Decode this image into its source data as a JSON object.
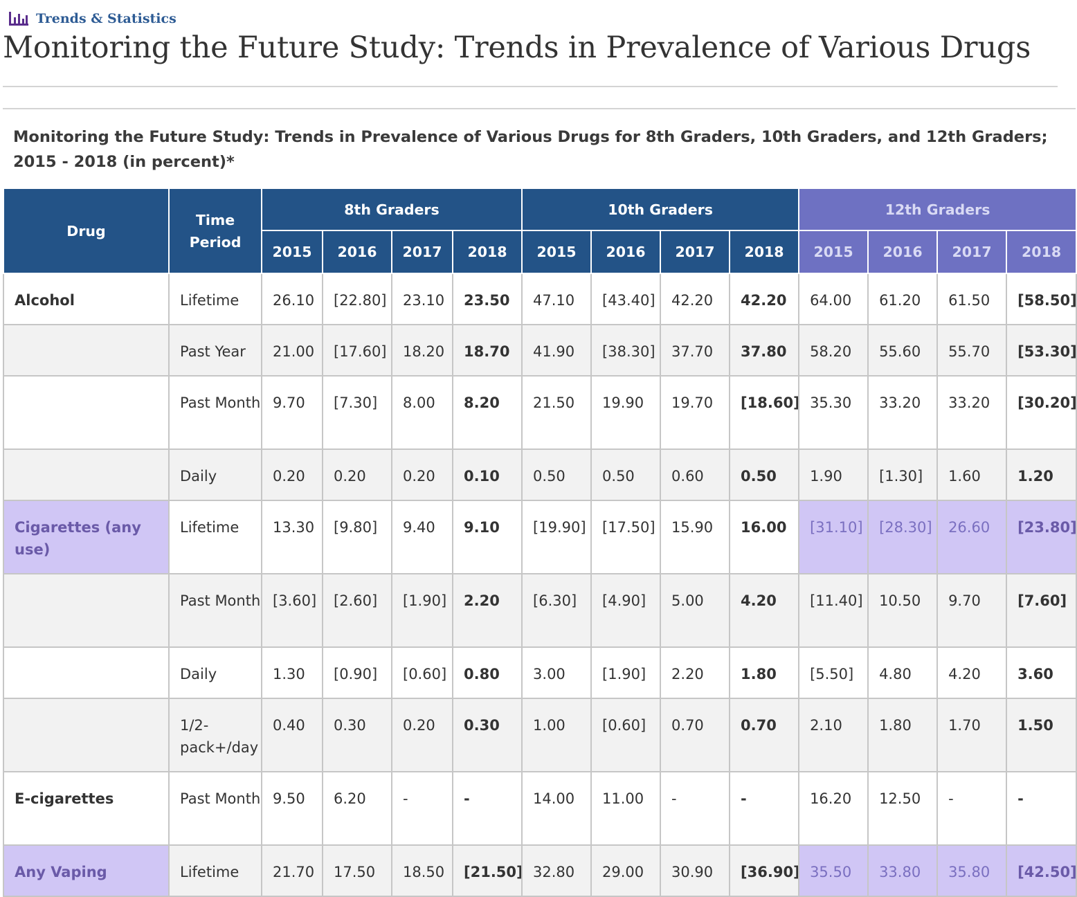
{
  "breadcrumb": {
    "label": "Trends & Statistics",
    "icon": "bar-chart-icon"
  },
  "page_title": "Monitoring the Future Study: Trends in Prevalence of Various Drugs",
  "table_caption": "Monitoring the Future Study: Trends in Prevalence of Various Drugs for 8th Graders, 10th Graders, and 12th Graders; 2015 - 2018 (in percent)*",
  "colors": {
    "header_blue": "#235387",
    "header_purple": "#6e71c2",
    "highlight_lavender": "#d0c6f5",
    "breadcrumb_text": "#2d5b94"
  },
  "table": {
    "headers": {
      "drug": "Drug",
      "time_period": "Time Period",
      "groups": [
        "8th Graders",
        "10th Graders",
        "12th Graders"
      ],
      "years": [
        "2015",
        "2016",
        "2017",
        "2018"
      ]
    },
    "rows": [
      {
        "drug": "Alcohol",
        "period": "Lifetime",
        "values": [
          "26.10",
          "[22.80]",
          "23.10",
          "23.50",
          "47.10",
          "[43.40]",
          "42.20",
          "42.20",
          "64.00",
          "61.20",
          "61.50",
          "[58.50]"
        ]
      },
      {
        "drug": "",
        "period": "Past Year",
        "values": [
          "21.00",
          "[17.60]",
          "18.20",
          "18.70",
          "41.90",
          "[38.30]",
          "37.70",
          "37.80",
          "58.20",
          "55.60",
          "55.70",
          "[53.30]"
        ]
      },
      {
        "drug": "",
        "period": "Past Month",
        "values": [
          "9.70",
          "[7.30]",
          "8.00",
          "8.20",
          "21.50",
          "19.90",
          "19.70",
          "[18.60]",
          "35.30",
          "33.20",
          "33.20",
          "[30.20]"
        ]
      },
      {
        "drug": "",
        "period": "Daily",
        "values": [
          "0.20",
          "0.20",
          "0.20",
          "0.10",
          "0.50",
          "0.50",
          "0.60",
          "0.50",
          "1.90",
          "[1.30]",
          "1.60",
          "1.20"
        ]
      },
      {
        "drug": "Cigarettes (any use)",
        "period": "Lifetime",
        "values": [
          "13.30",
          "[9.80]",
          "9.40",
          "9.10",
          "[19.90]",
          "[17.50]",
          "15.90",
          "16.00",
          "[31.10]",
          "[28.30]",
          "26.60",
          "[23.80]"
        ]
      },
      {
        "drug": "",
        "period": "Past Month",
        "values": [
          "[3.60]",
          "[2.60]",
          "[1.90]",
          "2.20",
          "[6.30]",
          "[4.90]",
          "5.00",
          "4.20",
          "[11.40]",
          "10.50",
          "9.70",
          "[7.60]"
        ]
      },
      {
        "drug": "",
        "period": "Daily",
        "values": [
          "1.30",
          "[0.90]",
          "[0.60]",
          "0.80",
          "3.00",
          "[1.90]",
          "2.20",
          "1.80",
          "[5.50]",
          "4.80",
          "4.20",
          "3.60"
        ]
      },
      {
        "drug": "",
        "period": "1/2-pack+/day",
        "values": [
          "0.40",
          "0.30",
          "0.20",
          "0.30",
          "1.00",
          "[0.60]",
          "0.70",
          "0.70",
          "2.10",
          "1.80",
          "1.70",
          "1.50"
        ]
      },
      {
        "drug": "E-cigarettes",
        "period": "Past Month",
        "values": [
          "9.50",
          "6.20",
          "-",
          "-",
          "14.00",
          "11.00",
          "-",
          "-",
          "16.20",
          "12.50",
          "-",
          "-"
        ]
      },
      {
        "drug": "Any Vaping",
        "period": "Lifetime",
        "values": [
          "21.70",
          "17.50",
          "18.50",
          "[21.50]",
          "32.80",
          "29.00",
          "30.90",
          "[36.90]",
          "35.50",
          "33.80",
          "35.80",
          "[42.50]"
        ]
      }
    ]
  }
}
